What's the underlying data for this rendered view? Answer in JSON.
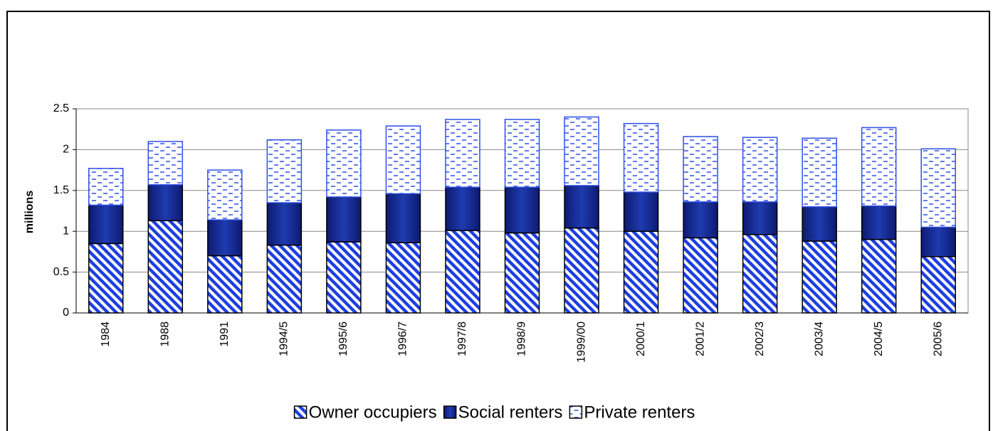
{
  "chart_data": {
    "type": "stacked_bar",
    "y_label": "millions",
    "categories": [
      "1984",
      "1988",
      "1991",
      "1994/5",
      "1995/6",
      "1996/7",
      "1997/8",
      "1998/9",
      "1999/00",
      "2000/1",
      "2001/2",
      "2002/3",
      "2003/4",
      "2004/5",
      "2005/6"
    ],
    "series": [
      {
        "name": "Owner occupiers",
        "color": "#1f3fe0",
        "values": [
          0.85,
          1.13,
          0.7,
          0.83,
          0.87,
          0.86,
          1.01,
          0.98,
          1.04,
          1.0,
          0.92,
          0.96,
          0.88,
          0.9,
          0.69
        ]
      },
      {
        "name": "Social renters",
        "color": "#1f3bb0",
        "values": [
          0.47,
          0.44,
          0.44,
          0.52,
          0.55,
          0.6,
          0.53,
          0.56,
          0.52,
          0.48,
          0.44,
          0.4,
          0.42,
          0.41,
          0.36
        ]
      },
      {
        "name": "Private renters",
        "color": "#2f50e8",
        "values": [
          0.45,
          0.53,
          0.61,
          0.77,
          0.82,
          0.83,
          0.83,
          0.83,
          0.84,
          0.84,
          0.8,
          0.79,
          0.84,
          0.96,
          0.96
        ]
      }
    ],
    "ylim": [
      0,
      2.5
    ],
    "yticks": [
      0,
      0.5,
      1,
      1.5,
      2,
      2.5
    ],
    "grid": true,
    "legend": "bottom"
  }
}
